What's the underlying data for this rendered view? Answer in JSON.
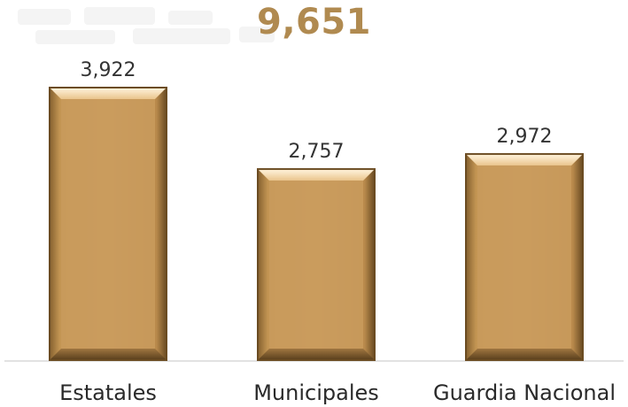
{
  "total": "9,651",
  "chart_data": {
    "type": "bar",
    "categories": [
      "Estatales",
      "Municipales",
      "Guardia Nacional"
    ],
    "values": [
      3922,
      2757,
      2972
    ],
    "value_labels": [
      "3,922",
      "2,757",
      "2,972"
    ],
    "title": "9,651",
    "xlabel": "",
    "ylabel": "",
    "ylim": [
      0,
      4200
    ],
    "grid": false,
    "legend": "none"
  },
  "colors": {
    "bar_fill": "#c89a5c",
    "bar_highlight": "#f5d7a6",
    "bar_shadow": "#7a5a2e",
    "total_text": "#b08a50",
    "axis_line": "#d9d9d9"
  }
}
